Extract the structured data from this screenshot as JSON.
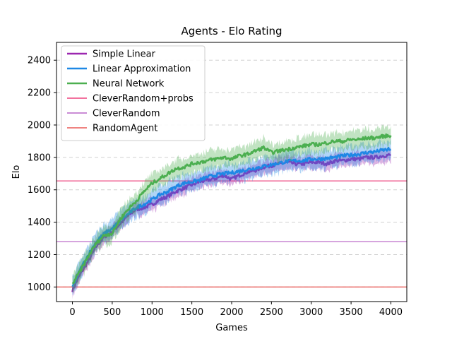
{
  "chart_data": {
    "type": "line",
    "title": "Agents - Elo Rating",
    "xlabel": "Games",
    "ylabel": "Elo",
    "xlim": [
      -200,
      4200
    ],
    "ylim": [
      910,
      2510
    ],
    "xticks": [
      0,
      500,
      1000,
      1500,
      2000,
      2500,
      3000,
      3500,
      4000
    ],
    "yticks": [
      1000,
      1200,
      1400,
      1600,
      1800,
      2000,
      2200,
      2400
    ],
    "grid": "horizontal-dashed",
    "legend_position": "top-left",
    "series": [
      {
        "name": "Simple Linear",
        "color": "#9c27b0",
        "kind": "band",
        "x": [
          0,
          100,
          200,
          300,
          400,
          500,
          600,
          700,
          800,
          900,
          1000,
          1100,
          1200,
          1300,
          1400,
          1500,
          1600,
          1700,
          1800,
          1900,
          2000,
          2100,
          2200,
          2300,
          2400,
          2500,
          2600,
          2700,
          2800,
          2900,
          3000,
          3100,
          3200,
          3300,
          3400,
          3500,
          3600,
          3700,
          3800,
          3900,
          4000
        ],
        "y": [
          980,
          1080,
          1160,
          1250,
          1310,
          1340,
          1390,
          1440,
          1480,
          1490,
          1510,
          1540,
          1560,
          1590,
          1610,
          1630,
          1650,
          1660,
          1670,
          1690,
          1665,
          1690,
          1710,
          1720,
          1740,
          1750,
          1760,
          1770,
          1760,
          1760,
          1770,
          1770,
          1760,
          1780,
          1780,
          1790,
          1790,
          1800,
          1800,
          1810,
          1815
        ],
        "spread": 40
      },
      {
        "name": "Linear Approximation",
        "color": "#1e88e5",
        "kind": "band",
        "x": [
          0,
          100,
          200,
          300,
          400,
          500,
          600,
          700,
          800,
          900,
          1000,
          1100,
          1200,
          1300,
          1400,
          1500,
          1600,
          1700,
          1800,
          1900,
          2000,
          2100,
          2200,
          2300,
          2400,
          2500,
          2600,
          2700,
          2800,
          2900,
          3000,
          3100,
          3200,
          3300,
          3400,
          3500,
          3600,
          3700,
          3800,
          3900,
          4000
        ],
        "y": [
          1000,
          1110,
          1200,
          1280,
          1330,
          1360,
          1410,
          1450,
          1490,
          1510,
          1540,
          1570,
          1590,
          1620,
          1640,
          1650,
          1660,
          1680,
          1690,
          1700,
          1705,
          1715,
          1725,
          1735,
          1745,
          1755,
          1765,
          1775,
          1780,
          1780,
          1790,
          1790,
          1795,
          1800,
          1810,
          1815,
          1820,
          1830,
          1835,
          1845,
          1850
        ],
        "spread": 55
      },
      {
        "name": "Neural Network",
        "color": "#4caf50",
        "kind": "band",
        "x": [
          0,
          100,
          200,
          300,
          400,
          500,
          600,
          700,
          800,
          900,
          1000,
          1100,
          1200,
          1300,
          1400,
          1500,
          1600,
          1700,
          1800,
          1900,
          2000,
          2100,
          2200,
          2300,
          2400,
          2500,
          2600,
          2700,
          2800,
          2900,
          3000,
          3100,
          3200,
          3300,
          3400,
          3500,
          3600,
          3700,
          3800,
          3900,
          4000
        ],
        "y": [
          1020,
          1100,
          1190,
          1270,
          1320,
          1330,
          1420,
          1480,
          1530,
          1590,
          1640,
          1670,
          1700,
          1730,
          1740,
          1760,
          1770,
          1780,
          1790,
          1800,
          1790,
          1810,
          1820,
          1840,
          1860,
          1830,
          1840,
          1850,
          1860,
          1870,
          1880,
          1880,
          1890,
          1900,
          1900,
          1910,
          1910,
          1920,
          1920,
          1930,
          1935
        ],
        "spread": 55
      },
      {
        "name": "CleverRandom+probs",
        "color": "#e91e63",
        "kind": "hline",
        "y": 1655
      },
      {
        "name": "CleverRandom",
        "color": "#ab47bc",
        "kind": "hline",
        "y": 1280
      },
      {
        "name": "RandomAgent",
        "color": "#e53935",
        "kind": "hline",
        "y": 1000
      }
    ]
  }
}
